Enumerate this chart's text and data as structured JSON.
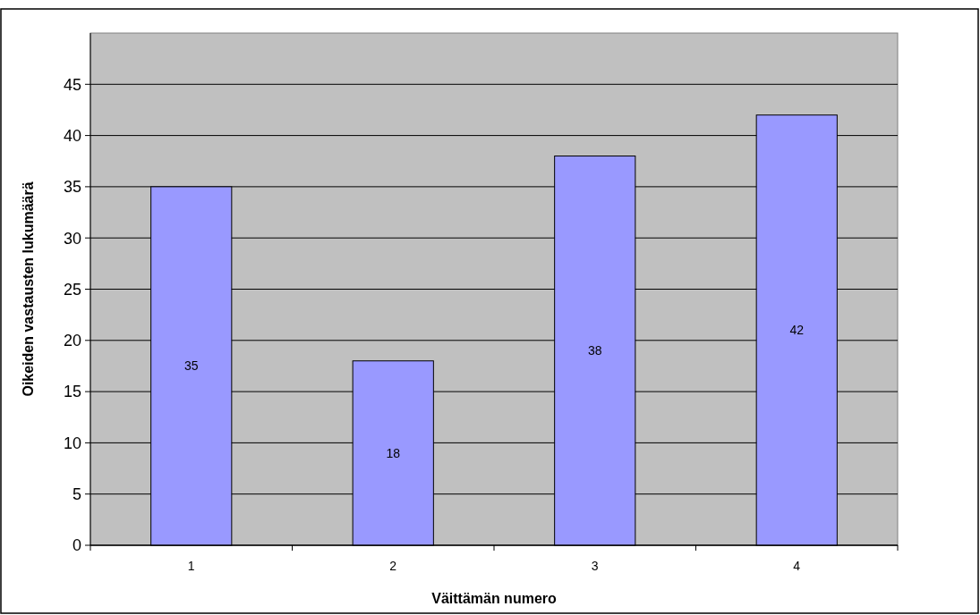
{
  "chart_data": {
    "type": "bar",
    "xlabel": "Väittämän numero",
    "ylabel": "Oikeiden vastausten lukumäärä",
    "categories": [
      "1",
      "2",
      "3",
      "4"
    ],
    "values": [
      35,
      18,
      38,
      42
    ],
    "color": "#9999ff",
    "ylim": [
      0,
      50
    ],
    "yticks": [
      0,
      5,
      10,
      15,
      20,
      25,
      30,
      35,
      40,
      45
    ],
    "grid": "y",
    "data_labels": true
  }
}
